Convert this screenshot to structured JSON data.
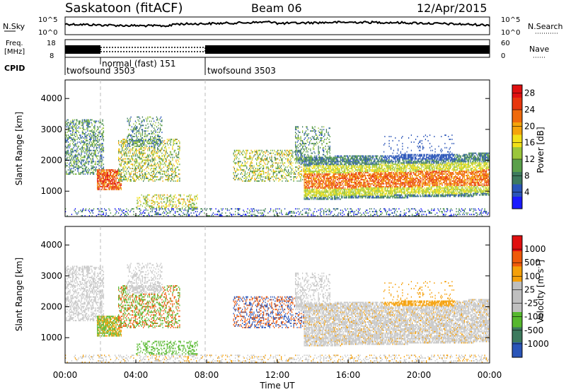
{
  "header": {
    "station": "Saskatoon (fitACF)",
    "beam": "Beam 06",
    "date": "12/Apr/2015"
  },
  "strips": {
    "nsky_label": "N.Sky",
    "nsearch_label": "N.Search",
    "noise_ticks": [
      "10^5",
      "10^0"
    ],
    "freq_label": "Freq.",
    "freq_unit": "[MHz]",
    "freq_ticks": [
      "18",
      "8"
    ],
    "nave_label": "Nave",
    "nave_ticks": [
      "60",
      "0"
    ],
    "cpid_label": "CPID",
    "cpid_segments": [
      {
        "name": "twofsound 3503",
        "start_h": 0,
        "end_h": 2
      },
      {
        "name": "normal (fast) 151",
        "start_h": 2,
        "end_h": 8
      },
      {
        "name": "twofsound 3503",
        "start_h": 8,
        "end_h": 24
      }
    ]
  },
  "chart_data": [
    {
      "type": "heatmap",
      "name": "Power",
      "ylabel": "Slant Range [km]",
      "xlabel": "Time UT",
      "xlim": [
        0,
        24
      ],
      "ylim": [
        180,
        4600
      ],
      "yticks": [
        "1000",
        "2000",
        "3000",
        "4000"
      ],
      "xticks": [
        "00:00",
        "04:00",
        "08:00",
        "12:00",
        "16:00",
        "20:00",
        "00:00"
      ],
      "colorbar_label": "Power [dB]",
      "colorbar_ticks": [
        "4",
        "8",
        "12",
        "16",
        "20",
        "24",
        "28"
      ],
      "colorbar_range": [
        0,
        30
      ]
    },
    {
      "type": "heatmap",
      "name": "Velocity",
      "ylabel": "Slant Range [km]",
      "xlabel": "Time UT",
      "xlim": [
        0,
        24
      ],
      "ylim": [
        180,
        4600
      ],
      "yticks": [
        "1000",
        "2000",
        "3000",
        "4000"
      ],
      "xticks": [
        "00:00",
        "04:00",
        "08:00",
        "12:00",
        "16:00",
        "20:00",
        "00:00"
      ],
      "colorbar_label": "Velocity [m s",
      "colorbar_unit_sup": "-1",
      "colorbar_ticks": [
        "1000",
        "500",
        "100",
        "25",
        "-25",
        "-100",
        "-500",
        "-1000"
      ]
    }
  ],
  "colors": {
    "power_scale": [
      "#1a1aff",
      "#2a55b8",
      "#3d7a5e",
      "#5aa04a",
      "#9bc63a",
      "#f2e018",
      "#f5a40a",
      "#ef6a0c",
      "#e8360d",
      "#e01010"
    ],
    "velocity_scale": [
      "#e01010",
      "#ef5a0a",
      "#f5a00a",
      "#bfbfbf",
      "#bfbfbf",
      "#56b82e",
      "#3d7a5e",
      "#2a55b8"
    ],
    "gray_scatter": "#c8c8c8"
  }
}
